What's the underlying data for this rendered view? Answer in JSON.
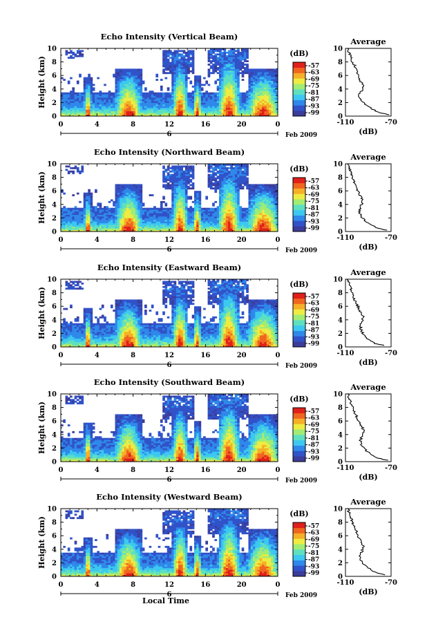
{
  "figure": {
    "xlabel": "Local Time",
    "date_label": "Feb 2009",
    "ylabel": "Height (km)",
    "colorbar_unit": "(dB)",
    "avg_title": "Average",
    "avg_xlabel": "(dB)",
    "palette": [
      "#3c3c9a",
      "#3152c8",
      "#2f88ea",
      "#3cc8f0",
      "#5ee0c0",
      "#a2ec74",
      "#eeec42",
      "#f5b027",
      "#f0661f",
      "#e0201b"
    ]
  },
  "chart_data": [
    {
      "type": "heatmap",
      "title": "Echo Intensity (Vertical Beam)",
      "xlabel": "",
      "ylabel": "Height (km)",
      "x_ticks": [
        "0",
        "4",
        "8",
        "12",
        "16",
        "20",
        "0"
      ],
      "x_range_hours": [
        0,
        24
      ],
      "date_tick": "6",
      "y_ticks": [
        "0",
        "2",
        "4",
        "6",
        "8",
        "10"
      ],
      "ylim_km": [
        0,
        10
      ],
      "colorbar": {
        "unit": "(dB)",
        "ticks": [
          "-57",
          "-63",
          "-69",
          "-75",
          "-81",
          "-87",
          "-93",
          "-99"
        ]
      },
      "average_profile": {
        "title": "Average",
        "xlabel": "(dB)",
        "x_ticks": [
          "-110",
          "-70"
        ],
        "xlim_db": [
          -110,
          -70
        ],
        "y_ticks": [
          "0",
          "2",
          "4",
          "6",
          "8",
          "10"
        ],
        "heights_km": [
          0.2,
          0.5,
          1,
          1.5,
          2,
          2.5,
          3,
          3.5,
          4,
          4.5,
          5,
          5.5,
          6,
          6.5,
          7,
          7.5,
          8,
          8.5,
          9,
          9.5,
          10
        ],
        "db": [
          -72,
          -80,
          -86,
          -91,
          -94,
          -97,
          -98,
          -97,
          -95,
          -94,
          -96,
          -98,
          -99,
          -100,
          -101,
          -102,
          -104,
          -105,
          -106,
          -107,
          -108
        ]
      }
    },
    {
      "type": "heatmap",
      "title": "Echo Intensity (Northward Beam)",
      "xlabel": "",
      "ylabel": "Height (km)",
      "x_ticks": [
        "0",
        "4",
        "8",
        "12",
        "16",
        "20",
        "0"
      ],
      "x_range_hours": [
        0,
        24
      ],
      "date_tick": "6",
      "y_ticks": [
        "0",
        "2",
        "4",
        "6",
        "8",
        "10"
      ],
      "ylim_km": [
        0,
        10
      ],
      "colorbar": {
        "unit": "(dB)",
        "ticks": [
          "-57",
          "-63",
          "-69",
          "-75",
          "-81",
          "-87",
          "-93",
          "-99"
        ]
      },
      "average_profile": {
        "title": "Average",
        "xlabel": "(dB)",
        "x_ticks": [
          "-110",
          "-70"
        ],
        "xlim_db": [
          -110,
          -70
        ],
        "y_ticks": [
          "0",
          "2",
          "4",
          "6",
          "8",
          "10"
        ],
        "heights_km": [
          0.2,
          0.5,
          1,
          1.5,
          2,
          2.5,
          3,
          3.5,
          4,
          4.5,
          5,
          5.5,
          6,
          6.5,
          7,
          7.5,
          8,
          8.5,
          9,
          9.5,
          10
        ],
        "db": [
          -74,
          -82,
          -88,
          -92,
          -95,
          -97,
          -98,
          -97,
          -96,
          -95,
          -96,
          -98,
          -99,
          -100,
          -102,
          -103,
          -104,
          -105,
          -106,
          -107,
          -108
        ]
      }
    },
    {
      "type": "heatmap",
      "title": "Echo Intensity (Eastward Beam)",
      "xlabel": "",
      "ylabel": "Height (km)",
      "x_ticks": [
        "0",
        "4",
        "8",
        "12",
        "16",
        "20",
        "0"
      ],
      "x_range_hours": [
        0,
        24
      ],
      "date_tick": "6",
      "y_ticks": [
        "0",
        "2",
        "4",
        "6",
        "8",
        "10"
      ],
      "ylim_km": [
        0,
        10
      ],
      "colorbar": {
        "unit": "(dB)",
        "ticks": [
          "-57",
          "-63",
          "-69",
          "-75",
          "-81",
          "-87",
          "-93",
          "-99"
        ]
      },
      "average_profile": {
        "title": "Average",
        "xlabel": "(dB)",
        "x_ticks": [
          "-110",
          "-70"
        ],
        "xlim_db": [
          -110,
          -70
        ],
        "y_ticks": [
          "0",
          "2",
          "4",
          "6",
          "8",
          "10"
        ],
        "heights_km": [
          0.2,
          0.5,
          1,
          1.5,
          2,
          2.5,
          3,
          3.5,
          4,
          4.5,
          5,
          5.5,
          6,
          6.5,
          7,
          7.5,
          8,
          8.5,
          9,
          9.5,
          10
        ],
        "db": [
          -76,
          -84,
          -89,
          -93,
          -95,
          -96,
          -97,
          -96,
          -95,
          -94,
          -96,
          -98,
          -99,
          -101,
          -102,
          -103,
          -104,
          -105,
          -106,
          -107,
          -108
        ]
      }
    },
    {
      "type": "heatmap",
      "title": "Echo Intensity (Southward Beam)",
      "xlabel": "",
      "ylabel": "Height (km)",
      "x_ticks": [
        "0",
        "4",
        "8",
        "12",
        "16",
        "20",
        "0"
      ],
      "x_range_hours": [
        0,
        24
      ],
      "date_tick": "6",
      "y_ticks": [
        "0",
        "2",
        "4",
        "6",
        "8",
        "10"
      ],
      "ylim_km": [
        0,
        10
      ],
      "colorbar": {
        "unit": "(dB)",
        "ticks": [
          "-57",
          "-63",
          "-69",
          "-75",
          "-81",
          "-87",
          "-93",
          "-99"
        ]
      },
      "average_profile": {
        "title": "Average",
        "xlabel": "(dB)",
        "x_ticks": [
          "-110",
          "-70"
        ],
        "xlim_db": [
          -110,
          -70
        ],
        "y_ticks": [
          "0",
          "2",
          "4",
          "6",
          "8",
          "10"
        ],
        "heights_km": [
          0.2,
          0.5,
          1,
          1.5,
          2,
          2.5,
          3,
          3.5,
          4,
          4.5,
          5,
          5.5,
          6,
          6.5,
          7,
          7.5,
          8,
          8.5,
          9,
          9.5,
          10
        ],
        "db": [
          -73,
          -81,
          -87,
          -91,
          -94,
          -96,
          -97,
          -96,
          -95,
          -94,
          -95,
          -97,
          -99,
          -100,
          -101,
          -103,
          -104,
          -105,
          -106,
          -107,
          -108
        ]
      }
    },
    {
      "type": "heatmap",
      "title": "Echo Intensity (Westward Beam)",
      "xlabel": "Local Time",
      "ylabel": "Height (km)",
      "x_ticks": [
        "0",
        "4",
        "8",
        "12",
        "16",
        "20",
        "0"
      ],
      "x_range_hours": [
        0,
        24
      ],
      "date_tick": "6",
      "y_ticks": [
        "0",
        "2",
        "4",
        "6",
        "8",
        "10"
      ],
      "ylim_km": [
        0,
        10
      ],
      "colorbar": {
        "unit": "(dB)",
        "ticks": [
          "-57",
          "-63",
          "-69",
          "-75",
          "-81",
          "-87",
          "-93",
          "-99"
        ]
      },
      "average_profile": {
        "title": "Average",
        "xlabel": "(dB)",
        "x_ticks": [
          "-110",
          "-70"
        ],
        "xlim_db": [
          -110,
          -70
        ],
        "y_ticks": [
          "0",
          "2",
          "4",
          "6",
          "8",
          "10"
        ],
        "heights_km": [
          0.2,
          0.5,
          1,
          1.5,
          2,
          2.5,
          3,
          3.5,
          4,
          4.5,
          5,
          5.5,
          6,
          6.5,
          7,
          7.5,
          8,
          8.5,
          9,
          9.5,
          10
        ],
        "db": [
          -75,
          -83,
          -88,
          -92,
          -95,
          -97,
          -97,
          -96,
          -95,
          -94,
          -96,
          -98,
          -99,
          -100,
          -102,
          -103,
          -104,
          -105,
          -106,
          -107,
          -108
        ]
      }
    }
  ]
}
